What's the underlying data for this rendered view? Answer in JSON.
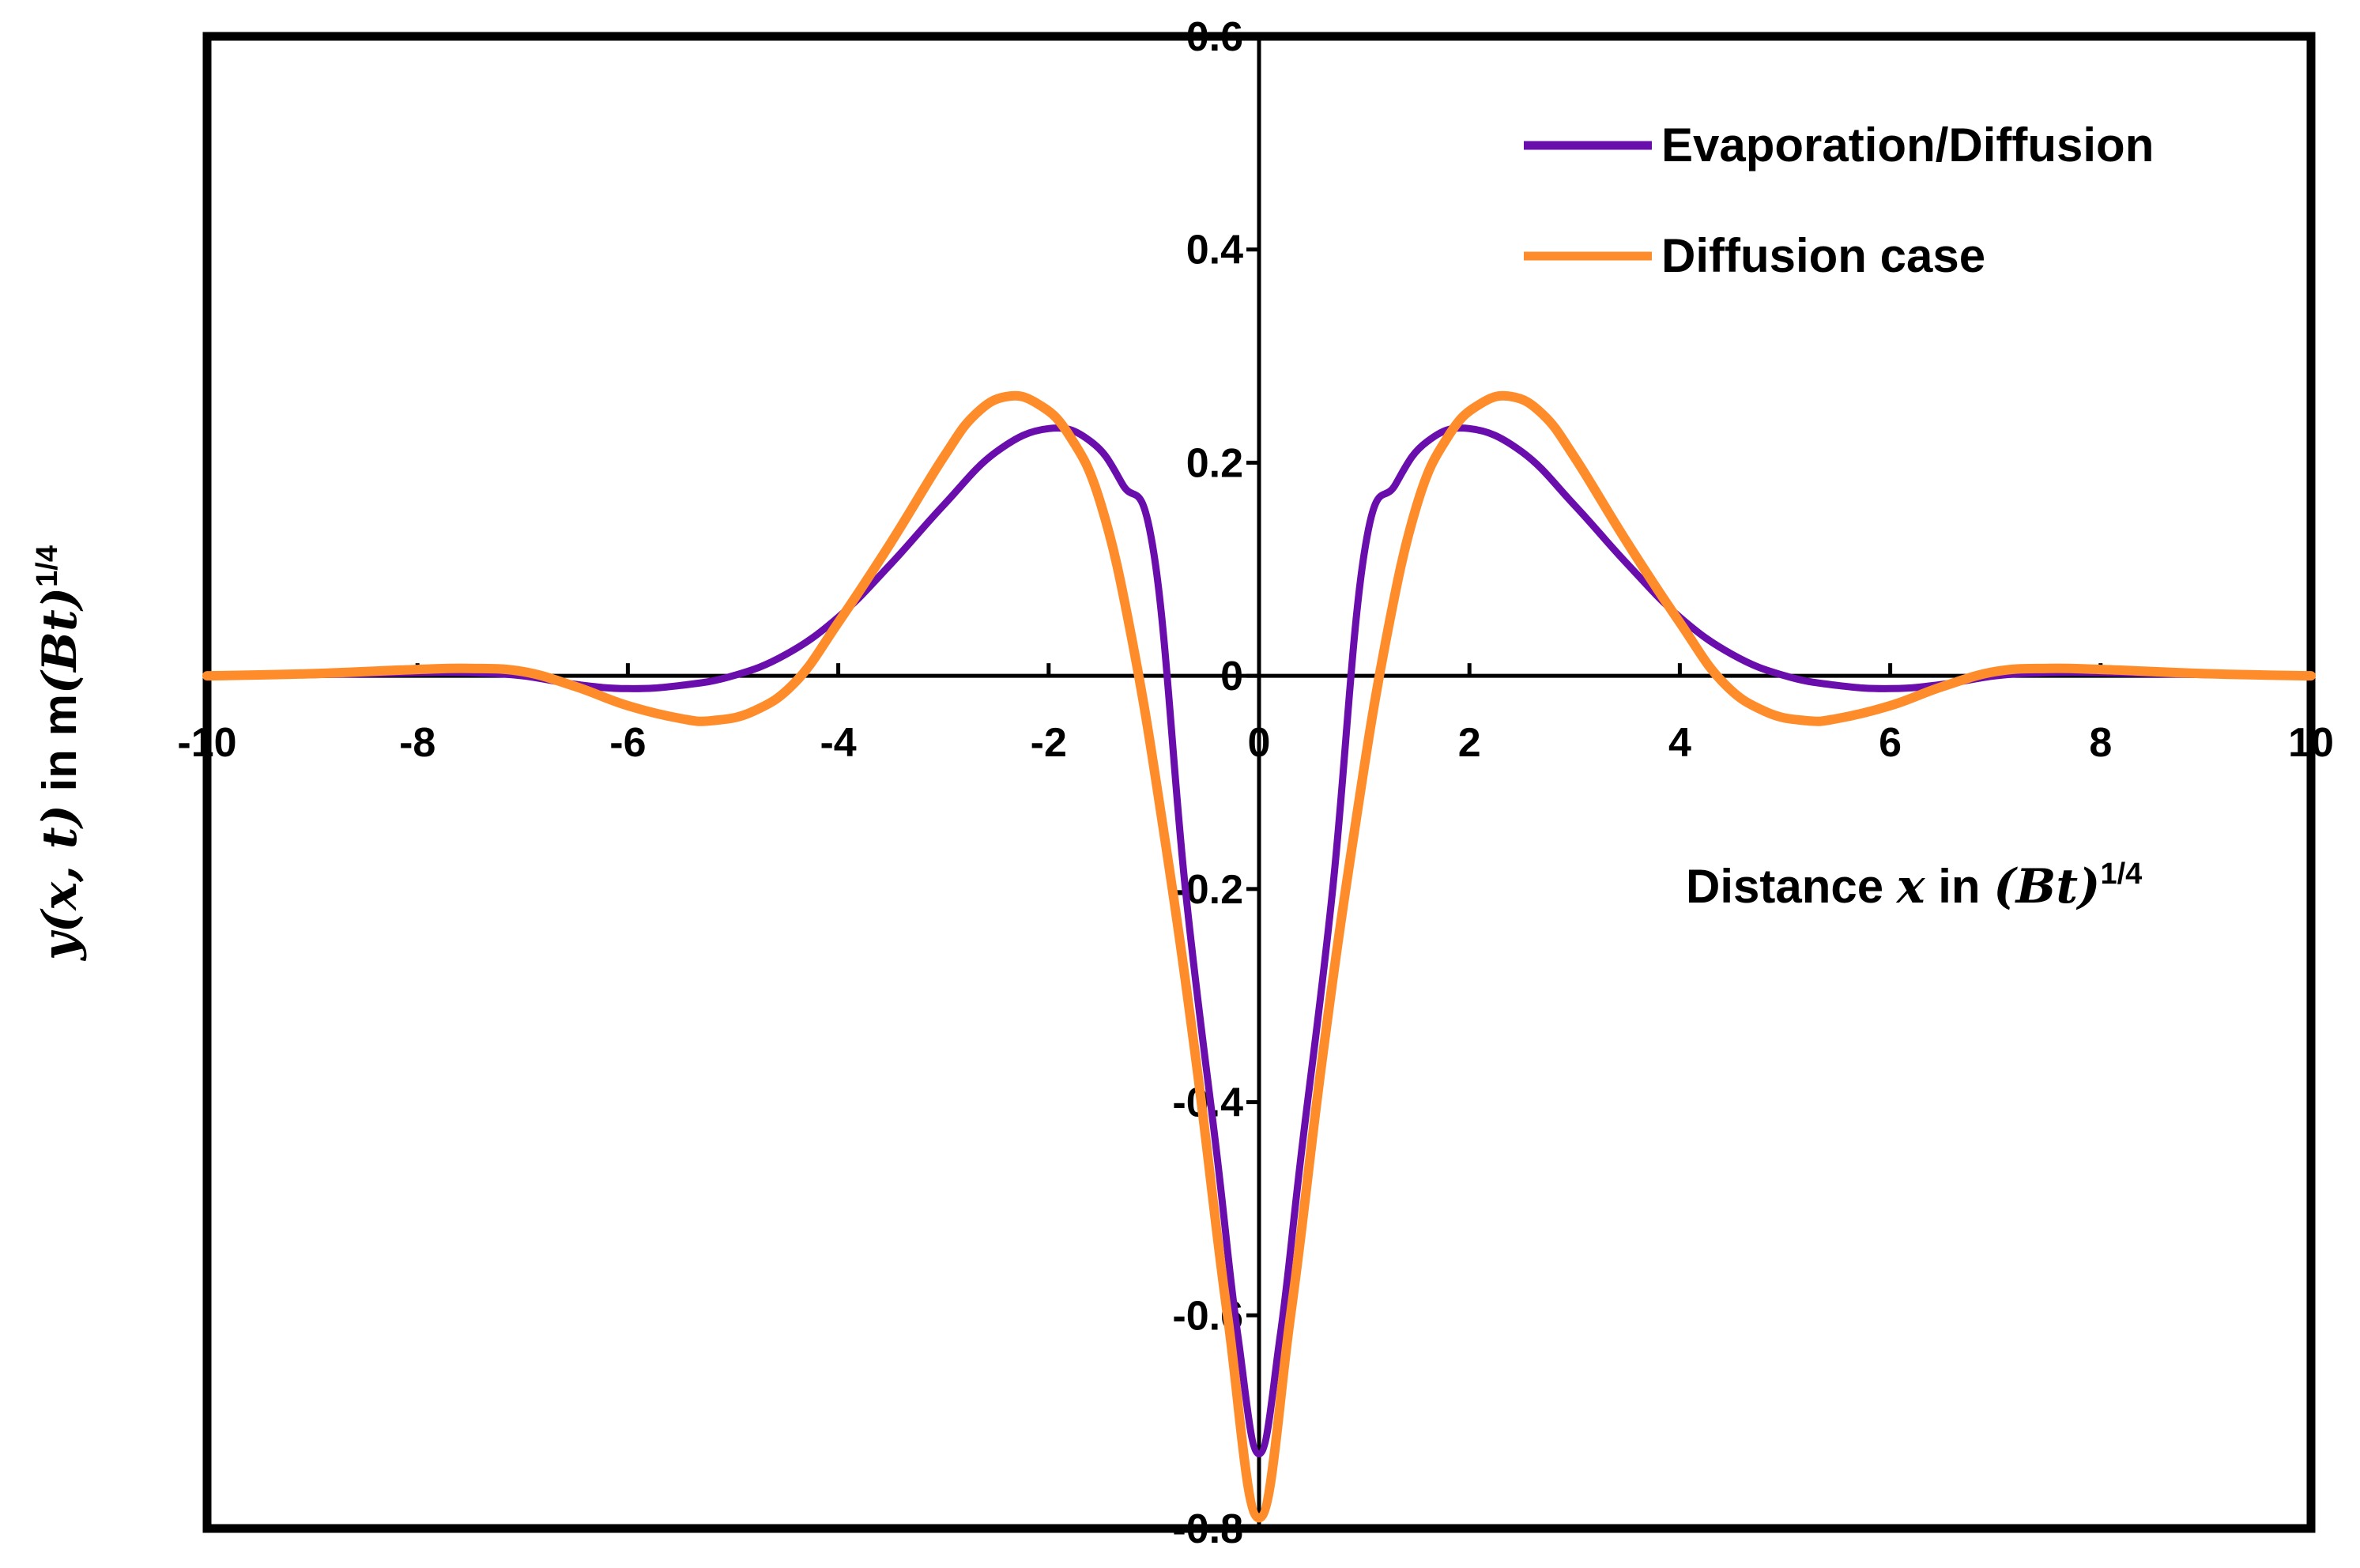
{
  "chart_data": {
    "type": "line",
    "title": "",
    "xlabel": {
      "text": "Distance x in (Bt)1/4",
      "prefix": "Distance ",
      "var": "x",
      "mid": " in ",
      "paren": "(Bt)",
      "sup": "1/4"
    },
    "ylabel": {
      "text": "y(x, t) in m(Bt)1/4",
      "var": "y(x, t)",
      "mid": " in m",
      "paren": "(Bt)",
      "sup": "1/4"
    },
    "xlim": [
      -10,
      10
    ],
    "ylim": [
      -0.8,
      0.6
    ],
    "xticks": [
      "-10",
      "-8",
      "-6",
      "-4",
      "-2",
      "0",
      "2",
      "4",
      "6",
      "8",
      "10"
    ],
    "yticks": [
      "-0.8",
      "-0.6",
      "-0.4",
      "-0.2",
      "0",
      "0.2",
      "0.4",
      "0.6"
    ],
    "legend_position": "top-right",
    "series": [
      {
        "name": "Evaporation/Diffusion",
        "color": "#6a0dad",
        "points": [
          [
            -10,
            0.0
          ],
          [
            -9,
            0.001
          ],
          [
            -8,
            0.003
          ],
          [
            -7.5,
            0.003
          ],
          [
            -7,
            0.0
          ],
          [
            -6.5,
            -0.008
          ],
          [
            -6,
            -0.012
          ],
          [
            -5.5,
            -0.009
          ],
          [
            -5,
            0.0
          ],
          [
            -4.5,
            0.02
          ],
          [
            -4,
            0.055
          ],
          [
            -3.5,
            0.105
          ],
          [
            -3,
            0.16
          ],
          [
            -2.5,
            0.21
          ],
          [
            -2,
            0.232
          ],
          [
            -1.6,
            0.22
          ],
          [
            -1.3,
            0.18
          ],
          [
            -1,
            0.115
          ],
          [
            -0.7,
            -0.2
          ],
          [
            -0.4,
            -0.45
          ],
          [
            -0.2,
            -0.62
          ],
          [
            0,
            -0.73
          ],
          [
            0.2,
            -0.62
          ],
          [
            0.4,
            -0.45
          ],
          [
            0.7,
            -0.2
          ],
          [
            1,
            0.115
          ],
          [
            1.3,
            0.18
          ],
          [
            1.6,
            0.22
          ],
          [
            2,
            0.232
          ],
          [
            2.5,
            0.21
          ],
          [
            3,
            0.16
          ],
          [
            3.5,
            0.105
          ],
          [
            4,
            0.055
          ],
          [
            4.5,
            0.02
          ],
          [
            5,
            0.0
          ],
          [
            5.5,
            -0.009
          ],
          [
            6,
            -0.012
          ],
          [
            6.5,
            -0.008
          ],
          [
            7,
            0.0
          ],
          [
            7.5,
            0.003
          ],
          [
            8,
            0.003
          ],
          [
            9,
            0.001
          ],
          [
            10,
            0.0
          ]
        ]
      },
      {
        "name": "Diffusion case",
        "color": "#ff8c2a",
        "points": [
          [
            -10,
            0.0
          ],
          [
            -9,
            0.002
          ],
          [
            -8,
            0.006
          ],
          [
            -7.5,
            0.007
          ],
          [
            -7,
            0.004
          ],
          [
            -6.5,
            -0.01
          ],
          [
            -6,
            -0.028
          ],
          [
            -5.5,
            -0.04
          ],
          [
            -5.2,
            -0.042
          ],
          [
            -4.8,
            -0.033
          ],
          [
            -4.4,
            -0.005
          ],
          [
            -4,
            0.05
          ],
          [
            -3.5,
            0.125
          ],
          [
            -3,
            0.205
          ],
          [
            -2.7,
            0.245
          ],
          [
            -2.4,
            0.262
          ],
          [
            -2.1,
            0.255
          ],
          [
            -1.8,
            0.225
          ],
          [
            -1.5,
            0.16
          ],
          [
            -1.2,
            0.03
          ],
          [
            -0.9,
            -0.15
          ],
          [
            -0.6,
            -0.36
          ],
          [
            -0.3,
            -0.6
          ],
          [
            0,
            -0.79
          ],
          [
            0.3,
            -0.6
          ],
          [
            0.6,
            -0.36
          ],
          [
            0.9,
            -0.15
          ],
          [
            1.2,
            0.03
          ],
          [
            1.5,
            0.16
          ],
          [
            1.8,
            0.225
          ],
          [
            2.1,
            0.255
          ],
          [
            2.4,
            0.262
          ],
          [
            2.7,
            0.245
          ],
          [
            3,
            0.205
          ],
          [
            3.5,
            0.125
          ],
          [
            4,
            0.05
          ],
          [
            4.4,
            -0.005
          ],
          [
            4.8,
            -0.033
          ],
          [
            5.2,
            -0.042
          ],
          [
            5.5,
            -0.04
          ],
          [
            6,
            -0.028
          ],
          [
            6.5,
            -0.01
          ],
          [
            7,
            0.004
          ],
          [
            7.5,
            0.007
          ],
          [
            8,
            0.006
          ],
          [
            9,
            0.002
          ],
          [
            10,
            0.0
          ]
        ]
      }
    ]
  }
}
